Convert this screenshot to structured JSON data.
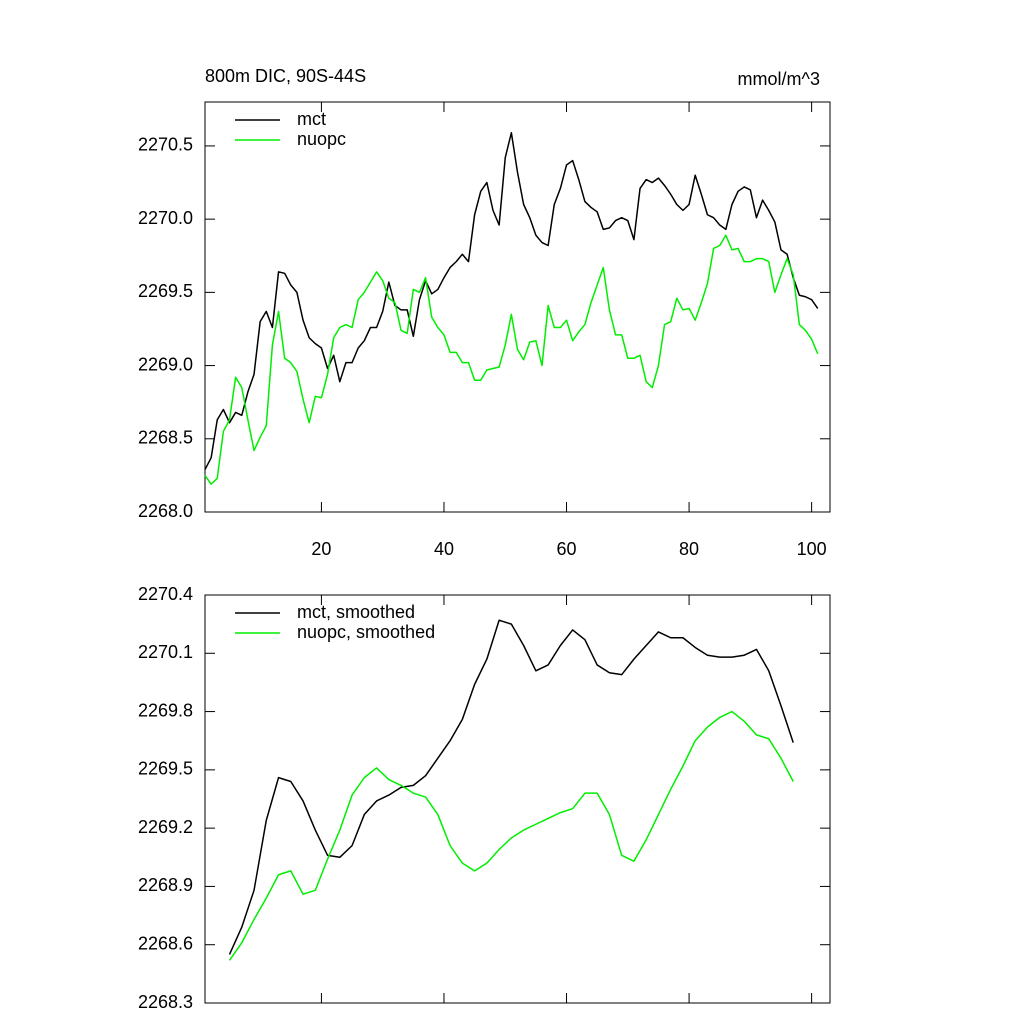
{
  "chart_data": [
    {
      "type": "line",
      "title": "800m DIC, 90S-44S",
      "subtitle": "mmol/m^3",
      "x": [
        1,
        2,
        3,
        4,
        5,
        6,
        7,
        8,
        9,
        10,
        11,
        12,
        13,
        14,
        15,
        16,
        17,
        18,
        19,
        20,
        21,
        22,
        23,
        24,
        25,
        26,
        27,
        28,
        29,
        30,
        31,
        32,
        33,
        34,
        35,
        36,
        37,
        38,
        39,
        40,
        41,
        42,
        43,
        44,
        45,
        46,
        47,
        48,
        49,
        50,
        51,
        52,
        53,
        54,
        55,
        56,
        57,
        58,
        59,
        60,
        61,
        62,
        63,
        64,
        65,
        66,
        67,
        68,
        69,
        70,
        71,
        72,
        73,
        74,
        75,
        76,
        77,
        78,
        79,
        80,
        81,
        82,
        83,
        84,
        85,
        86,
        87,
        88,
        89,
        90,
        91,
        92,
        93,
        94,
        95,
        96,
        97,
        98,
        99,
        100,
        101
      ],
      "series": [
        {
          "name": "mct",
          "color": "#000000",
          "values": [
            2268.29,
            2268.37,
            2268.63,
            2268.7,
            2268.61,
            2268.68,
            2268.66,
            2268.82,
            2268.94,
            2269.3,
            2269.37,
            2269.26,
            2269.64,
            2269.63,
            2269.55,
            2269.5,
            2269.31,
            2269.19,
            2269.15,
            2269.12,
            2268.98,
            2269.07,
            2268.89,
            2269.02,
            2269.02,
            2269.12,
            2269.17,
            2269.26,
            2269.26,
            2269.37,
            2269.57,
            2269.41,
            2269.38,
            2269.38,
            2269.2,
            2269.45,
            2269.58,
            2269.49,
            2269.52,
            2269.6,
            2269.67,
            2269.71,
            2269.76,
            2269.71,
            2270.03,
            2270.19,
            2270.25,
            2270.06,
            2269.96,
            2270.42,
            2270.59,
            2270.32,
            2270.1,
            2270.01,
            2269.89,
            2269.84,
            2269.82,
            2270.1,
            2270.21,
            2270.37,
            2270.4,
            2270.27,
            2270.12,
            2270.08,
            2270.05,
            2269.93,
            2269.94,
            2269.99,
            2270.01,
            2269.99,
            2269.86,
            2270.21,
            2270.27,
            2270.25,
            2270.28,
            2270.23,
            2270.17,
            2270.1,
            2270.06,
            2270.1,
            2270.3,
            2270.17,
            2270.03,
            2270.01,
            2269.96,
            2269.93,
            2270.1,
            2270.19,
            2270.22,
            2270.2,
            2270.01,
            2270.13,
            2270.06,
            2269.98,
            2269.79,
            2269.76,
            2269.6,
            2269.48,
            2269.47,
            2269.45,
            2269.39
          ]
        },
        {
          "name": "nuopc",
          "color": "#00ee00",
          "values": [
            2268.25,
            2268.19,
            2268.23,
            2268.55,
            2268.63,
            2268.92,
            2268.85,
            2268.63,
            2268.42,
            2268.51,
            2268.59,
            2269.14,
            2269.37,
            2269.05,
            2269.02,
            2268.96,
            2268.77,
            2268.61,
            2268.79,
            2268.78,
            2268.94,
            2269.19,
            2269.26,
            2269.28,
            2269.26,
            2269.45,
            2269.5,
            2269.57,
            2269.64,
            2269.58,
            2269.46,
            2269.43,
            2269.24,
            2269.22,
            2269.52,
            2269.5,
            2269.6,
            2269.33,
            2269.26,
            2269.21,
            2269.09,
            2269.09,
            2269.02,
            2269.02,
            2268.9,
            2268.9,
            2268.97,
            2268.98,
            2268.99,
            2269.14,
            2269.35,
            2269.11,
            2269.04,
            2269.16,
            2269.17,
            2269.0,
            2269.41,
            2269.26,
            2269.26,
            2269.31,
            2269.17,
            2269.23,
            2269.28,
            2269.43,
            2269.55,
            2269.67,
            2269.38,
            2269.21,
            2269.21,
            2269.05,
            2269.05,
            2269.07,
            2268.89,
            2268.85,
            2269.0,
            2269.28,
            2269.3,
            2269.46,
            2269.38,
            2269.39,
            2269.31,
            2269.43,
            2269.56,
            2269.8,
            2269.82,
            2269.89,
            2269.79,
            2269.8,
            2269.71,
            2269.71,
            2269.73,
            2269.73,
            2269.71,
            2269.5,
            2269.62,
            2269.73,
            2269.62,
            2269.28,
            2269.24,
            2269.18,
            2269.08
          ]
        }
      ],
      "xlim": [
        1,
        103
      ],
      "ylim": [
        2268.0,
        2270.8
      ],
      "xticks": [
        20,
        40,
        60,
        80,
        100
      ],
      "yticks": [
        {
          "value": 2268.0,
          "label": "2268.0"
        },
        2268.5,
        {
          "value": 2269.0,
          "label": "2269.0"
        },
        2269.5,
        {
          "value": 2270.0,
          "label": "2270.0"
        },
        2270.5
      ],
      "xtick_labels": true
    },
    {
      "type": "line",
      "x": [
        5,
        7,
        9,
        11,
        13,
        15,
        17,
        19,
        21,
        23,
        25,
        27,
        29,
        31,
        33,
        35,
        37,
        39,
        41,
        43,
        45,
        47,
        49,
        51,
        53,
        55,
        57,
        59,
        61,
        63,
        65,
        67,
        69,
        71,
        73,
        75,
        77,
        79,
        81,
        83,
        85,
        87,
        89,
        91,
        93,
        95,
        97
      ],
      "series": [
        {
          "name": "mct, smoothed",
          "color": "#000000",
          "values": [
            2268.55,
            2268.69,
            2268.88,
            2269.24,
            2269.46,
            2269.44,
            2269.34,
            2269.19,
            2269.06,
            2269.05,
            2269.11,
            2269.27,
            2269.34,
            2269.37,
            2269.41,
            2269.42,
            2269.47,
            2269.56,
            2269.65,
            2269.76,
            2269.94,
            2270.07,
            2270.27,
            2270.25,
            2270.14,
            2270.01,
            2270.04,
            2270.14,
            2270.22,
            2270.17,
            2270.04,
            2270.0,
            2269.99,
            2270.07,
            2270.14,
            2270.21,
            2270.18,
            2270.18,
            2270.13,
            2270.09,
            2270.08,
            2270.08,
            2270.09,
            2270.12,
            2270.01,
            2269.83,
            2269.64
          ]
        },
        {
          "name": "nuopc, smoothed",
          "color": "#00ee00",
          "values": [
            2268.52,
            2268.61,
            2268.73,
            2268.84,
            2268.96,
            2268.98,
            2268.86,
            2268.88,
            2269.04,
            2269.19,
            2269.37,
            2269.46,
            2269.51,
            2269.45,
            2269.42,
            2269.38,
            2269.36,
            2269.27,
            2269.11,
            2269.02,
            2268.98,
            2269.02,
            2269.09,
            2269.15,
            2269.19,
            2269.22,
            2269.25,
            2269.28,
            2269.3,
            2269.38,
            2269.38,
            2269.27,
            2269.06,
            2269.03,
            2269.14,
            2269.27,
            2269.4,
            2269.52,
            2269.65,
            2269.72,
            2269.77,
            2269.8,
            2269.75,
            2269.68,
            2269.66,
            2269.56,
            2269.44
          ]
        }
      ],
      "xlim": [
        1,
        103
      ],
      "ylim": [
        2268.3,
        2270.4
      ],
      "xticks": [
        20,
        40,
        60,
        80,
        100
      ],
      "yticks": [
        2268.3,
        2268.6,
        2268.9,
        2269.2,
        2269.5,
        2269.8,
        2270.1,
        2270.4
      ],
      "xtick_labels": false
    }
  ]
}
